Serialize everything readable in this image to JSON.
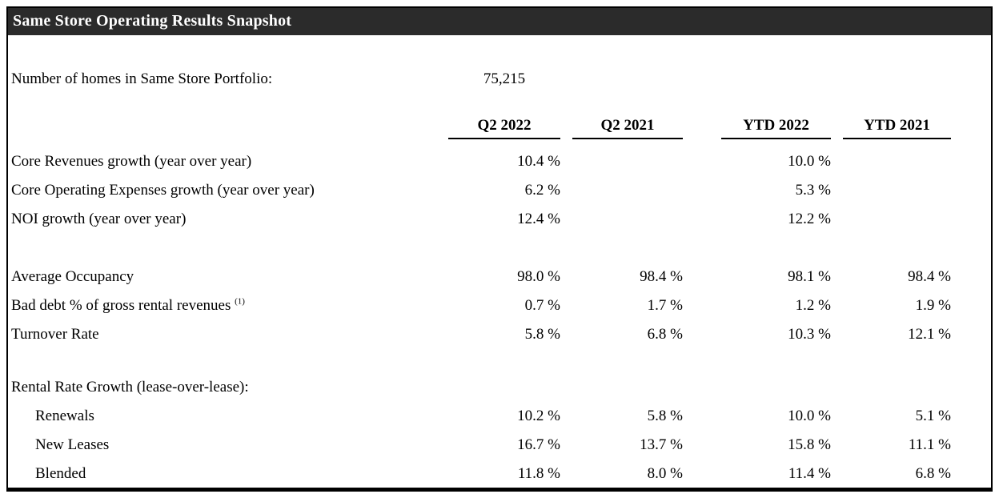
{
  "title": "Same Store Operating Results Snapshot",
  "portfolio": {
    "label": "Number of homes in Same Store Portfolio:",
    "value": "75,215"
  },
  "columns": [
    "Q2 2022",
    "Q2 2021",
    "YTD 2022",
    "YTD 2021"
  ],
  "rows": [
    {
      "label": "Core Revenues growth (year over year)",
      "values": [
        "10.4 %",
        "",
        "10.0 %",
        ""
      ]
    },
    {
      "label": "Core Operating Expenses growth (year over year)",
      "values": [
        "6.2 %",
        "",
        "5.3 %",
        ""
      ]
    },
    {
      "label": "NOI growth (year over year)",
      "values": [
        "12.4 %",
        "",
        "12.2 %",
        ""
      ]
    },
    {
      "label": "Average Occupancy",
      "values": [
        "98.0 %",
        "98.4 %",
        "98.1 %",
        "98.4 %"
      ]
    },
    {
      "label": "Bad debt % of gross rental revenues",
      "footnote": "(1)",
      "values": [
        "0.7 %",
        "1.7 %",
        "1.2 %",
        "1.9 %"
      ]
    },
    {
      "label": "Turnover Rate",
      "values": [
        "5.8 %",
        "6.8 %",
        "10.3 %",
        "12.1 %"
      ]
    },
    {
      "label": "Rental Rate Growth (lease-over-lease):",
      "values": [
        "",
        "",
        "",
        ""
      ]
    },
    {
      "label": "Renewals",
      "indent": true,
      "values": [
        "10.2 %",
        "5.8 %",
        "10.0 %",
        "5.1 %"
      ]
    },
    {
      "label": "New Leases",
      "indent": true,
      "values": [
        "16.7 %",
        "13.7 %",
        "15.8 %",
        "11.1 %"
      ]
    },
    {
      "label": "Blended",
      "indent": true,
      "values": [
        "11.8 %",
        "8.0 %",
        "11.4 %",
        "6.8 %"
      ]
    }
  ],
  "colors": {
    "header_bar": "#2b2b2b",
    "border": "#000000",
    "background": "#ffffff",
    "text": "#000000",
    "title_text": "#ffffff"
  }
}
